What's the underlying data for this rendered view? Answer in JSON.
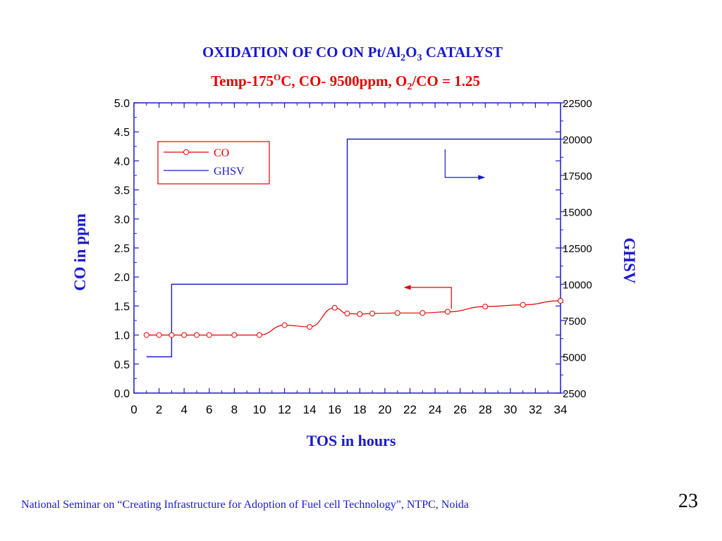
{
  "titles": {
    "line1_a": "OXIDATION OF CO ON Pt/Al",
    "line1_sub1": "2",
    "line1_b": "O",
    "line1_sub2": "3",
    "line1_c": " CATALYST",
    "line2_a": "Temp-175",
    "line2_sup": "O",
    "line2_b": "C, CO- 9500ppm, O",
    "line2_sub": "2",
    "line2_c": "/CO = 1.25"
  },
  "footer": {
    "text": "National Seminar on “Creating Infrastructure for Adoption of Fuel cell Technology”,  NTPC,   Noida",
    "page": "23"
  },
  "colors": {
    "co": "#e60000",
    "ghsv": "#1a1acc",
    "axis": "#1a1acc",
    "legend_border": "#e60000"
  },
  "chart_data": {
    "type": "line",
    "xlabel": "TOS in hours",
    "ylabel": "CO in ppm",
    "y2label": "GHSV",
    "xlim": [
      0,
      34
    ],
    "ylim": [
      0,
      5
    ],
    "y2lim": [
      2500,
      22500
    ],
    "x_ticks": [
      0,
      2,
      4,
      6,
      8,
      10,
      12,
      14,
      16,
      18,
      20,
      22,
      24,
      26,
      28,
      30,
      32,
      34
    ],
    "y_ticks": [
      "0.0",
      "0.5",
      "1.0",
      "1.5",
      "2.0",
      "2.5",
      "3.0",
      "3.5",
      "4.0",
      "4.5",
      "5.0"
    ],
    "y2_ticks": [
      "2500",
      "5000",
      "7500",
      "10000",
      "12500",
      "15000",
      "17500",
      "20000",
      "22500"
    ],
    "legend": [
      "CO",
      "GHSV"
    ],
    "legend_position": "top-left",
    "series": [
      {
        "name": "CO",
        "axis": "left",
        "markers": true,
        "x": [
          1,
          2,
          3,
          4,
          5,
          6,
          8,
          10,
          12,
          14,
          16,
          17,
          18,
          19,
          21,
          23,
          25,
          28,
          31,
          34
        ],
        "values": [
          1.0,
          1.0,
          1.0,
          1.0,
          1.0,
          1.0,
          1.0,
          1.0,
          1.17,
          1.14,
          1.47,
          1.37,
          1.36,
          1.37,
          1.38,
          1.38,
          1.4,
          1.49,
          1.52,
          1.59
        ]
      },
      {
        "name": "GHSV",
        "axis": "right",
        "markers": false,
        "step": true,
        "x": [
          1,
          3,
          3,
          17,
          17,
          34
        ],
        "values": [
          5000,
          5000,
          10000,
          10000,
          20000,
          20000
        ]
      }
    ]
  }
}
